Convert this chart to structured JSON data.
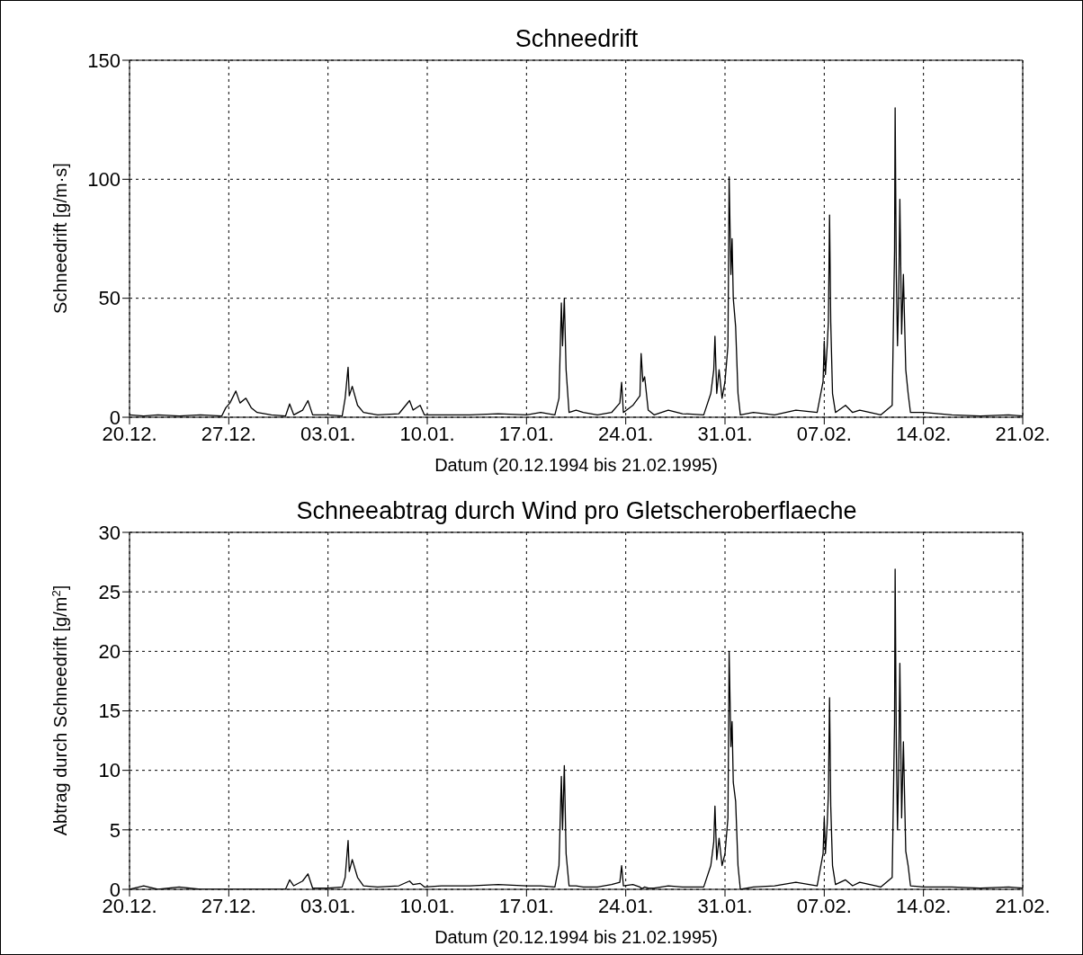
{
  "chart_data": [
    {
      "type": "line",
      "title": "Schneedrift",
      "xlabel": "Datum (20.12.1994 bis 21.02.1995)",
      "ylabel": "Schneedrift [g/m·s]",
      "x": [
        "1994-12-20T00:00",
        "1994-12-21T00:00",
        "1994-12-22T00:00",
        "1994-12-23T12:00",
        "1994-12-25T00:00",
        "1994-12-26T12:00",
        "1994-12-26T19:00",
        "1994-12-27T02:00",
        "1994-12-27T12:00",
        "1994-12-27T19:00",
        "1994-12-28T05:00",
        "1994-12-28T14:00",
        "1994-12-29T00:00",
        "1994-12-30T00:00",
        "1994-12-31T00:00",
        "1994-12-31T07:00",
        "1994-12-31T14:00",
        "1995-01-01T05:00",
        "1995-01-01T14:00",
        "1995-01-01T22:00",
        "1995-01-03T00:00",
        "1995-01-04T00:00",
        "1995-01-04T05:00",
        "1995-01-04T10:00",
        "1995-01-04T12:00",
        "1995-01-04T17:00",
        "1995-01-05T02:00",
        "1995-01-05T12:00",
        "1995-01-06T12:00",
        "1995-01-08T00:00",
        "1995-01-08T18:00",
        "1995-01-09T00:00",
        "1995-01-09T12:00",
        "1995-01-09T19:00",
        "1995-01-11T00:00",
        "1995-01-13T00:00",
        "1995-01-15T00:00",
        "1995-01-17T00:00",
        "1995-01-18T00:00",
        "1995-01-19T00:00",
        "1995-01-19T07:00",
        "1995-01-19T11:00",
        "1995-01-19T13:00",
        "1995-01-19T16:00",
        "1995-01-19T19:00",
        "1995-01-20T00:00",
        "1995-01-20T12:00",
        "1995-01-21T00:00",
        "1995-01-22T00:00",
        "1995-01-23T00:00",
        "1995-01-23T14:00",
        "1995-01-23T17:00",
        "1995-01-23T20:00",
        "1995-01-24T12:00",
        "1995-01-25T00:00",
        "1995-01-25T02:00",
        "1995-01-25T05:00",
        "1995-01-25T08:00",
        "1995-01-25T14:00",
        "1995-01-26T00:00",
        "1995-01-27T00:00",
        "1995-01-28T00:00",
        "1995-01-29T12:00",
        "1995-01-30T00:00",
        "1995-01-30T05:00",
        "1995-01-30T07:00",
        "1995-01-30T10:00",
        "1995-01-30T14:00",
        "1995-01-30T19:00",
        "1995-01-31T00:00",
        "1995-01-31T05:00",
        "1995-01-31T07:00",
        "1995-01-31T10:00",
        "1995-01-31T12:00",
        "1995-01-31T14:00",
        "1995-01-31T18:00",
        "1995-01-31T22:00",
        "1995-02-01T02:00",
        "1995-02-02T00:00",
        "1995-02-03T12:00",
        "1995-02-05T00:00",
        "1995-02-06T12:00",
        "1995-02-06T22:00",
        "1995-02-07T00:00",
        "1995-02-07T02:00",
        "1995-02-07T05:00",
        "1995-02-07T07:00",
        "1995-02-07T09:00",
        "1995-02-07T11:00",
        "1995-02-07T14:00",
        "1995-02-07T19:00",
        "1995-02-08T12:00",
        "1995-02-09T00:00",
        "1995-02-09T12:00",
        "1995-02-11T00:00",
        "1995-02-11T19:00",
        "1995-02-11T23:00",
        "1995-02-12T00:00",
        "1995-02-12T02:00",
        "1995-02-12T04:00",
        "1995-02-12T06:00",
        "1995-02-12T08:00",
        "1995-02-12T11:00",
        "1995-02-12T14:00",
        "1995-02-12T18:00",
        "1995-02-12T22:00",
        "1995-02-13T02:00",
        "1995-02-14T00:00",
        "1995-02-16T00:00",
        "1995-02-18T00:00",
        "1995-02-20T00:00",
        "1995-02-21T00:00"
      ],
      "series": [
        {
          "color": "#000000",
          "values": [
            1,
            0.5,
            1,
            0.5,
            1,
            0.5,
            4,
            6,
            11,
            6,
            8,
            4,
            2,
            1,
            0.5,
            5.6,
            1,
            3,
            7,
            1,
            1,
            0.5,
            8,
            21,
            9,
            13,
            5,
            2,
            1,
            1.5,
            7,
            3,
            5,
            1,
            1,
            1,
            1.5,
            1,
            2,
            1,
            8,
            48,
            30,
            50,
            20,
            2,
            3,
            2,
            1,
            2,
            6,
            14.7,
            2,
            5,
            9,
            26.8,
            15,
            17,
            3,
            1,
            3,
            1.5,
            1,
            10,
            20,
            34,
            10,
            20,
            8,
            15,
            30,
            101,
            60,
            75,
            50,
            38,
            10,
            1,
            2,
            1,
            3,
            2,
            15,
            32,
            18,
            30,
            40,
            85,
            40,
            10,
            2,
            5,
            2,
            3,
            1,
            5,
            70,
            130,
            60,
            30,
            50,
            91.6,
            35,
            60,
            20,
            10,
            2,
            2,
            1,
            0.5,
            1,
            0.5
          ]
        }
      ],
      "xlim": [
        "1994-12-20",
        "1995-02-21"
      ],
      "xticks": [
        {
          "value": "1994-12-20",
          "label": "20.12."
        },
        {
          "value": "1994-12-27",
          "label": "27.12."
        },
        {
          "value": "1995-01-03",
          "label": "03.01."
        },
        {
          "value": "1995-01-10",
          "label": "10.01."
        },
        {
          "value": "1995-01-17",
          "label": "17.01."
        },
        {
          "value": "1995-01-24",
          "label": "24.01."
        },
        {
          "value": "1995-01-31",
          "label": "31.01."
        },
        {
          "value": "1995-02-07",
          "label": "07.02."
        },
        {
          "value": "1995-02-14",
          "label": "14.02."
        },
        {
          "value": "1995-02-21",
          "label": "21.02."
        }
      ],
      "ylim": [
        0,
        150
      ],
      "yticks": [
        0,
        50,
        100,
        150
      ],
      "grid": true,
      "line_style": "solid",
      "marker": "none"
    },
    {
      "type": "line",
      "title": "Schneeabtrag durch Wind pro Gletscheroberflaeche",
      "xlabel": "Datum (20.12.1994 bis 21.02.1995)",
      "ylabel": "Abtrag durch Schneedrift [g/m$^{2}$]",
      "x": [
        "1994-12-20T00:00",
        "1994-12-21T00:00",
        "1994-12-22T00:00",
        "1994-12-23T12:00",
        "1994-12-25T00:00",
        "1994-12-26T12:00",
        "1994-12-26T19:00",
        "1994-12-27T02:00",
        "1994-12-27T12:00",
        "1994-12-27T19:00",
        "1994-12-28T05:00",
        "1994-12-28T14:00",
        "1994-12-29T00:00",
        "1994-12-30T00:00",
        "1994-12-31T00:00",
        "1994-12-31T07:00",
        "1994-12-31T14:00",
        "1995-01-01T05:00",
        "1995-01-01T14:00",
        "1995-01-01T22:00",
        "1995-01-03T00:00",
        "1995-01-04T00:00",
        "1995-01-04T05:00",
        "1995-01-04T10:00",
        "1995-01-04T12:00",
        "1995-01-04T17:00",
        "1995-01-05T02:00",
        "1995-01-05T12:00",
        "1995-01-06T12:00",
        "1995-01-08T00:00",
        "1995-01-08T18:00",
        "1995-01-09T00:00",
        "1995-01-09T12:00",
        "1995-01-09T19:00",
        "1995-01-11T00:00",
        "1995-01-13T00:00",
        "1995-01-15T00:00",
        "1995-01-17T00:00",
        "1995-01-18T00:00",
        "1995-01-19T00:00",
        "1995-01-19T07:00",
        "1995-01-19T11:00",
        "1995-01-19T13:00",
        "1995-01-19T16:00",
        "1995-01-19T19:00",
        "1995-01-20T00:00",
        "1995-01-20T12:00",
        "1995-01-21T00:00",
        "1995-01-22T00:00",
        "1995-01-23T00:00",
        "1995-01-23T14:00",
        "1995-01-23T17:00",
        "1995-01-23T20:00",
        "1995-01-24T12:00",
        "1995-01-25T00:00",
        "1995-01-25T02:00",
        "1995-01-25T05:00",
        "1995-01-25T08:00",
        "1995-01-25T14:00",
        "1995-01-26T00:00",
        "1995-01-27T00:00",
        "1995-01-28T00:00",
        "1995-01-29T12:00",
        "1995-01-30T00:00",
        "1995-01-30T05:00",
        "1995-01-30T07:00",
        "1995-01-30T10:00",
        "1995-01-30T14:00",
        "1995-01-30T19:00",
        "1995-01-31T00:00",
        "1995-01-31T05:00",
        "1995-01-31T07:00",
        "1995-01-31T10:00",
        "1995-01-31T12:00",
        "1995-01-31T14:00",
        "1995-01-31T18:00",
        "1995-01-31T22:00",
        "1995-02-01T02:00",
        "1995-02-02T00:00",
        "1995-02-03T12:00",
        "1995-02-05T00:00",
        "1995-02-06T12:00",
        "1995-02-06T22:00",
        "1995-02-07T00:00",
        "1995-02-07T02:00",
        "1995-02-07T05:00",
        "1995-02-07T07:00",
        "1995-02-07T09:00",
        "1995-02-07T11:00",
        "1995-02-07T14:00",
        "1995-02-07T19:00",
        "1995-02-08T12:00",
        "1995-02-09T00:00",
        "1995-02-09T12:00",
        "1995-02-11T00:00",
        "1995-02-11T19:00",
        "1995-02-11T23:00",
        "1995-02-12T00:00",
        "1995-02-12T02:00",
        "1995-02-12T04:00",
        "1995-02-12T06:00",
        "1995-02-12T08:00",
        "1995-02-12T11:00",
        "1995-02-12T14:00",
        "1995-02-12T18:00",
        "1995-02-12T22:00",
        "1995-02-13T02:00",
        "1995-02-14T00:00",
        "1995-02-16T00:00",
        "1995-02-18T00:00",
        "1995-02-20T00:00",
        "1995-02-21T00:00"
      ],
      "series": [
        {
          "color": "#000000",
          "values": [
            0,
            0.3,
            0,
            0.2,
            0,
            0,
            0,
            0,
            0,
            0,
            0,
            0,
            0,
            0,
            0,
            0.8,
            0.3,
            0.7,
            1.3,
            0.1,
            0.1,
            0.2,
            1,
            4.1,
            1.5,
            2.5,
            1,
            0.3,
            0.2,
            0.3,
            0.7,
            0.4,
            0.5,
            0.2,
            0.3,
            0.3,
            0.4,
            0.3,
            0.3,
            0.2,
            2,
            9.5,
            5,
            10.4,
            3,
            0.3,
            0.3,
            0.2,
            0.2,
            0.4,
            0.6,
            2,
            0.3,
            0.4,
            0.2,
            0.1,
            0.1,
            0.2,
            0.1,
            0.1,
            0.3,
            0.2,
            0.2,
            2,
            4,
            7,
            2.5,
            4.3,
            2,
            3,
            6,
            20,
            12,
            14.1,
            9,
            7.4,
            2,
            0,
            0.2,
            0.3,
            0.6,
            0.3,
            3,
            6,
            3,
            5.5,
            8,
            16.1,
            7,
            2,
            0.4,
            0.8,
            0.3,
            0.6,
            0.2,
            1,
            14,
            26.9,
            12,
            5,
            10,
            19,
            6,
            12.4,
            3.2,
            2,
            0.3,
            0.2,
            0.2,
            0.1,
            0.2,
            0.1
          ]
        }
      ],
      "xlim": [
        "1994-12-20",
        "1995-02-21"
      ],
      "xticks": [
        {
          "value": "1994-12-20",
          "label": "20.12."
        },
        {
          "value": "1994-12-27",
          "label": "27.12."
        },
        {
          "value": "1995-01-03",
          "label": "03.01."
        },
        {
          "value": "1995-01-10",
          "label": "10.01."
        },
        {
          "value": "1995-01-17",
          "label": "17.01."
        },
        {
          "value": "1995-01-24",
          "label": "24.01."
        },
        {
          "value": "1995-01-31",
          "label": "31.01."
        },
        {
          "value": "1995-02-07",
          "label": "07.02."
        },
        {
          "value": "1995-02-14",
          "label": "14.02."
        },
        {
          "value": "1995-02-21",
          "label": "21.02."
        }
      ],
      "ylim": [
        0,
        30
      ],
      "yticks": [
        0,
        5,
        10,
        15,
        20,
        25,
        30
      ],
      "grid": true,
      "line_style": "solid",
      "marker": "none"
    }
  ]
}
